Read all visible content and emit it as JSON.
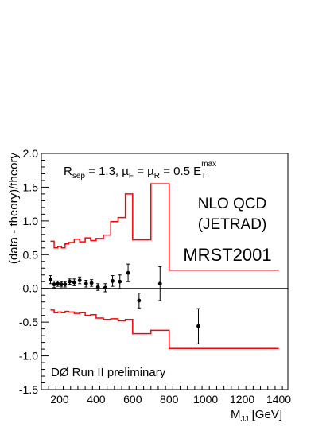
{
  "chart_data": {
    "type": "scatter",
    "xlabel_main": "M",
    "xlabel_sub": "JJ",
    "xlabel_unit": " [GeV]",
    "ylabel": "(data - theory)/theory",
    "xlim": [
      100,
      1450
    ],
    "ylim": [
      -1.5,
      2.0
    ],
    "x_ticks": [
      "200",
      "400",
      "600",
      "800",
      "1000",
      "1200",
      "1400"
    ],
    "y_ticks": [
      "-1.5",
      "-1.0",
      "-0.5",
      "0.0",
      "0.5",
      "1.0",
      "1.5",
      "2.0"
    ],
    "grid": false,
    "annotations": {
      "params": {
        "r": "R",
        "r_sub": "sep",
        "r_val": " = 1.3, ",
        "mu": "µ",
        "muf_sub": "F",
        "eq": " = ",
        "mur_sub": "R",
        "val": " = 0.5 E",
        "et_sub": "T",
        "et_sup": "max"
      },
      "theory_line1": "NLO QCD",
      "theory_line2": "(JETRAD)",
      "pdf": "MRST2001",
      "experiment": "DØ Run II preliminary"
    },
    "points": [
      {
        "x": 150,
        "y": 0.13,
        "err": 0.06
      },
      {
        "x": 170,
        "y": 0.06,
        "err": 0.05
      },
      {
        "x": 190,
        "y": 0.07,
        "err": 0.04
      },
      {
        "x": 210,
        "y": 0.06,
        "err": 0.04
      },
      {
        "x": 230,
        "y": 0.06,
        "err": 0.04
      },
      {
        "x": 255,
        "y": 0.1,
        "err": 0.04
      },
      {
        "x": 280,
        "y": 0.09,
        "err": 0.05
      },
      {
        "x": 310,
        "y": 0.12,
        "err": 0.05
      },
      {
        "x": 345,
        "y": 0.07,
        "err": 0.05
      },
      {
        "x": 375,
        "y": 0.08,
        "err": 0.05
      },
      {
        "x": 410,
        "y": 0.02,
        "err": 0.05
      },
      {
        "x": 450,
        "y": 0.01,
        "err": 0.06
      },
      {
        "x": 490,
        "y": 0.11,
        "err": 0.08
      },
      {
        "x": 530,
        "y": 0.1,
        "err": 0.1
      },
      {
        "x": 575,
        "y": 0.23,
        "err": 0.13
      },
      {
        "x": 635,
        "y": -0.18,
        "err": 0.11
      },
      {
        "x": 750,
        "y": 0.07,
        "err": 0.25
      },
      {
        "x": 960,
        "y": -0.56,
        "err": 0.26
      }
    ],
    "upper_band": {
      "edges": [
        150,
        170,
        190,
        210,
        230,
        250,
        280,
        310,
        340,
        370,
        400,
        440,
        480,
        520,
        560,
        600,
        700,
        800,
        1400
      ],
      "values": [
        0.7,
        0.6,
        0.62,
        0.6,
        0.66,
        0.68,
        0.73,
        0.69,
        0.75,
        0.71,
        0.74,
        0.79,
        0.99,
        1.05,
        1.4,
        0.72,
        1.55,
        0.27
      ]
    },
    "lower_band": {
      "edges": [
        150,
        170,
        190,
        210,
        230,
        250,
        280,
        310,
        340,
        370,
        400,
        440,
        480,
        520,
        560,
        600,
        700,
        800,
        1400
      ],
      "values": [
        -0.32,
        -0.36,
        -0.35,
        -0.36,
        -0.34,
        -0.35,
        -0.37,
        -0.36,
        -0.4,
        -0.39,
        -0.44,
        -0.46,
        -0.45,
        -0.48,
        -0.46,
        -0.67,
        -0.62,
        -0.89
      ]
    },
    "colors": {
      "band": "#ff0000",
      "points": "#000000",
      "zero_line": "#000000"
    }
  }
}
